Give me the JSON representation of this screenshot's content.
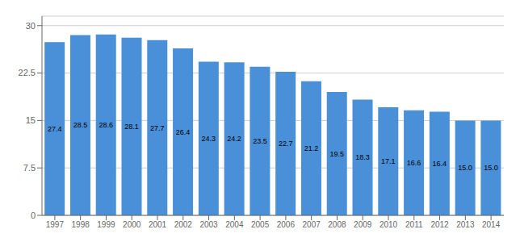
{
  "chart_data": {
    "type": "bar",
    "categories": [
      "1997",
      "1998",
      "1999",
      "2000",
      "2001",
      "2002",
      "2003",
      "2004",
      "2005",
      "2006",
      "2007",
      "2008",
      "2009",
      "2010",
      "2011",
      "2012",
      "2013",
      "2014"
    ],
    "values": [
      27.4,
      28.5,
      28.6,
      28.1,
      27.7,
      26.4,
      24.3,
      24.2,
      23.5,
      22.7,
      21.2,
      19.5,
      18.3,
      17.1,
      16.6,
      16.4,
      15.0,
      15.0
    ],
    "value_labels": [
      "27.4",
      "28.5",
      "28.6",
      "28.1",
      "27.7",
      "26.4",
      "24.3",
      "24.2",
      "23.5",
      "22.7",
      "21.2",
      "19.5",
      "18.3",
      "17.1",
      "16.6",
      "16.4",
      "15.0",
      "15.0"
    ],
    "color": "#4a90d9",
    "ylim": [
      0,
      31.5
    ],
    "yticks": [
      0,
      7.5,
      15,
      22.5,
      30
    ],
    "grid": true,
    "data_labels": true
  }
}
